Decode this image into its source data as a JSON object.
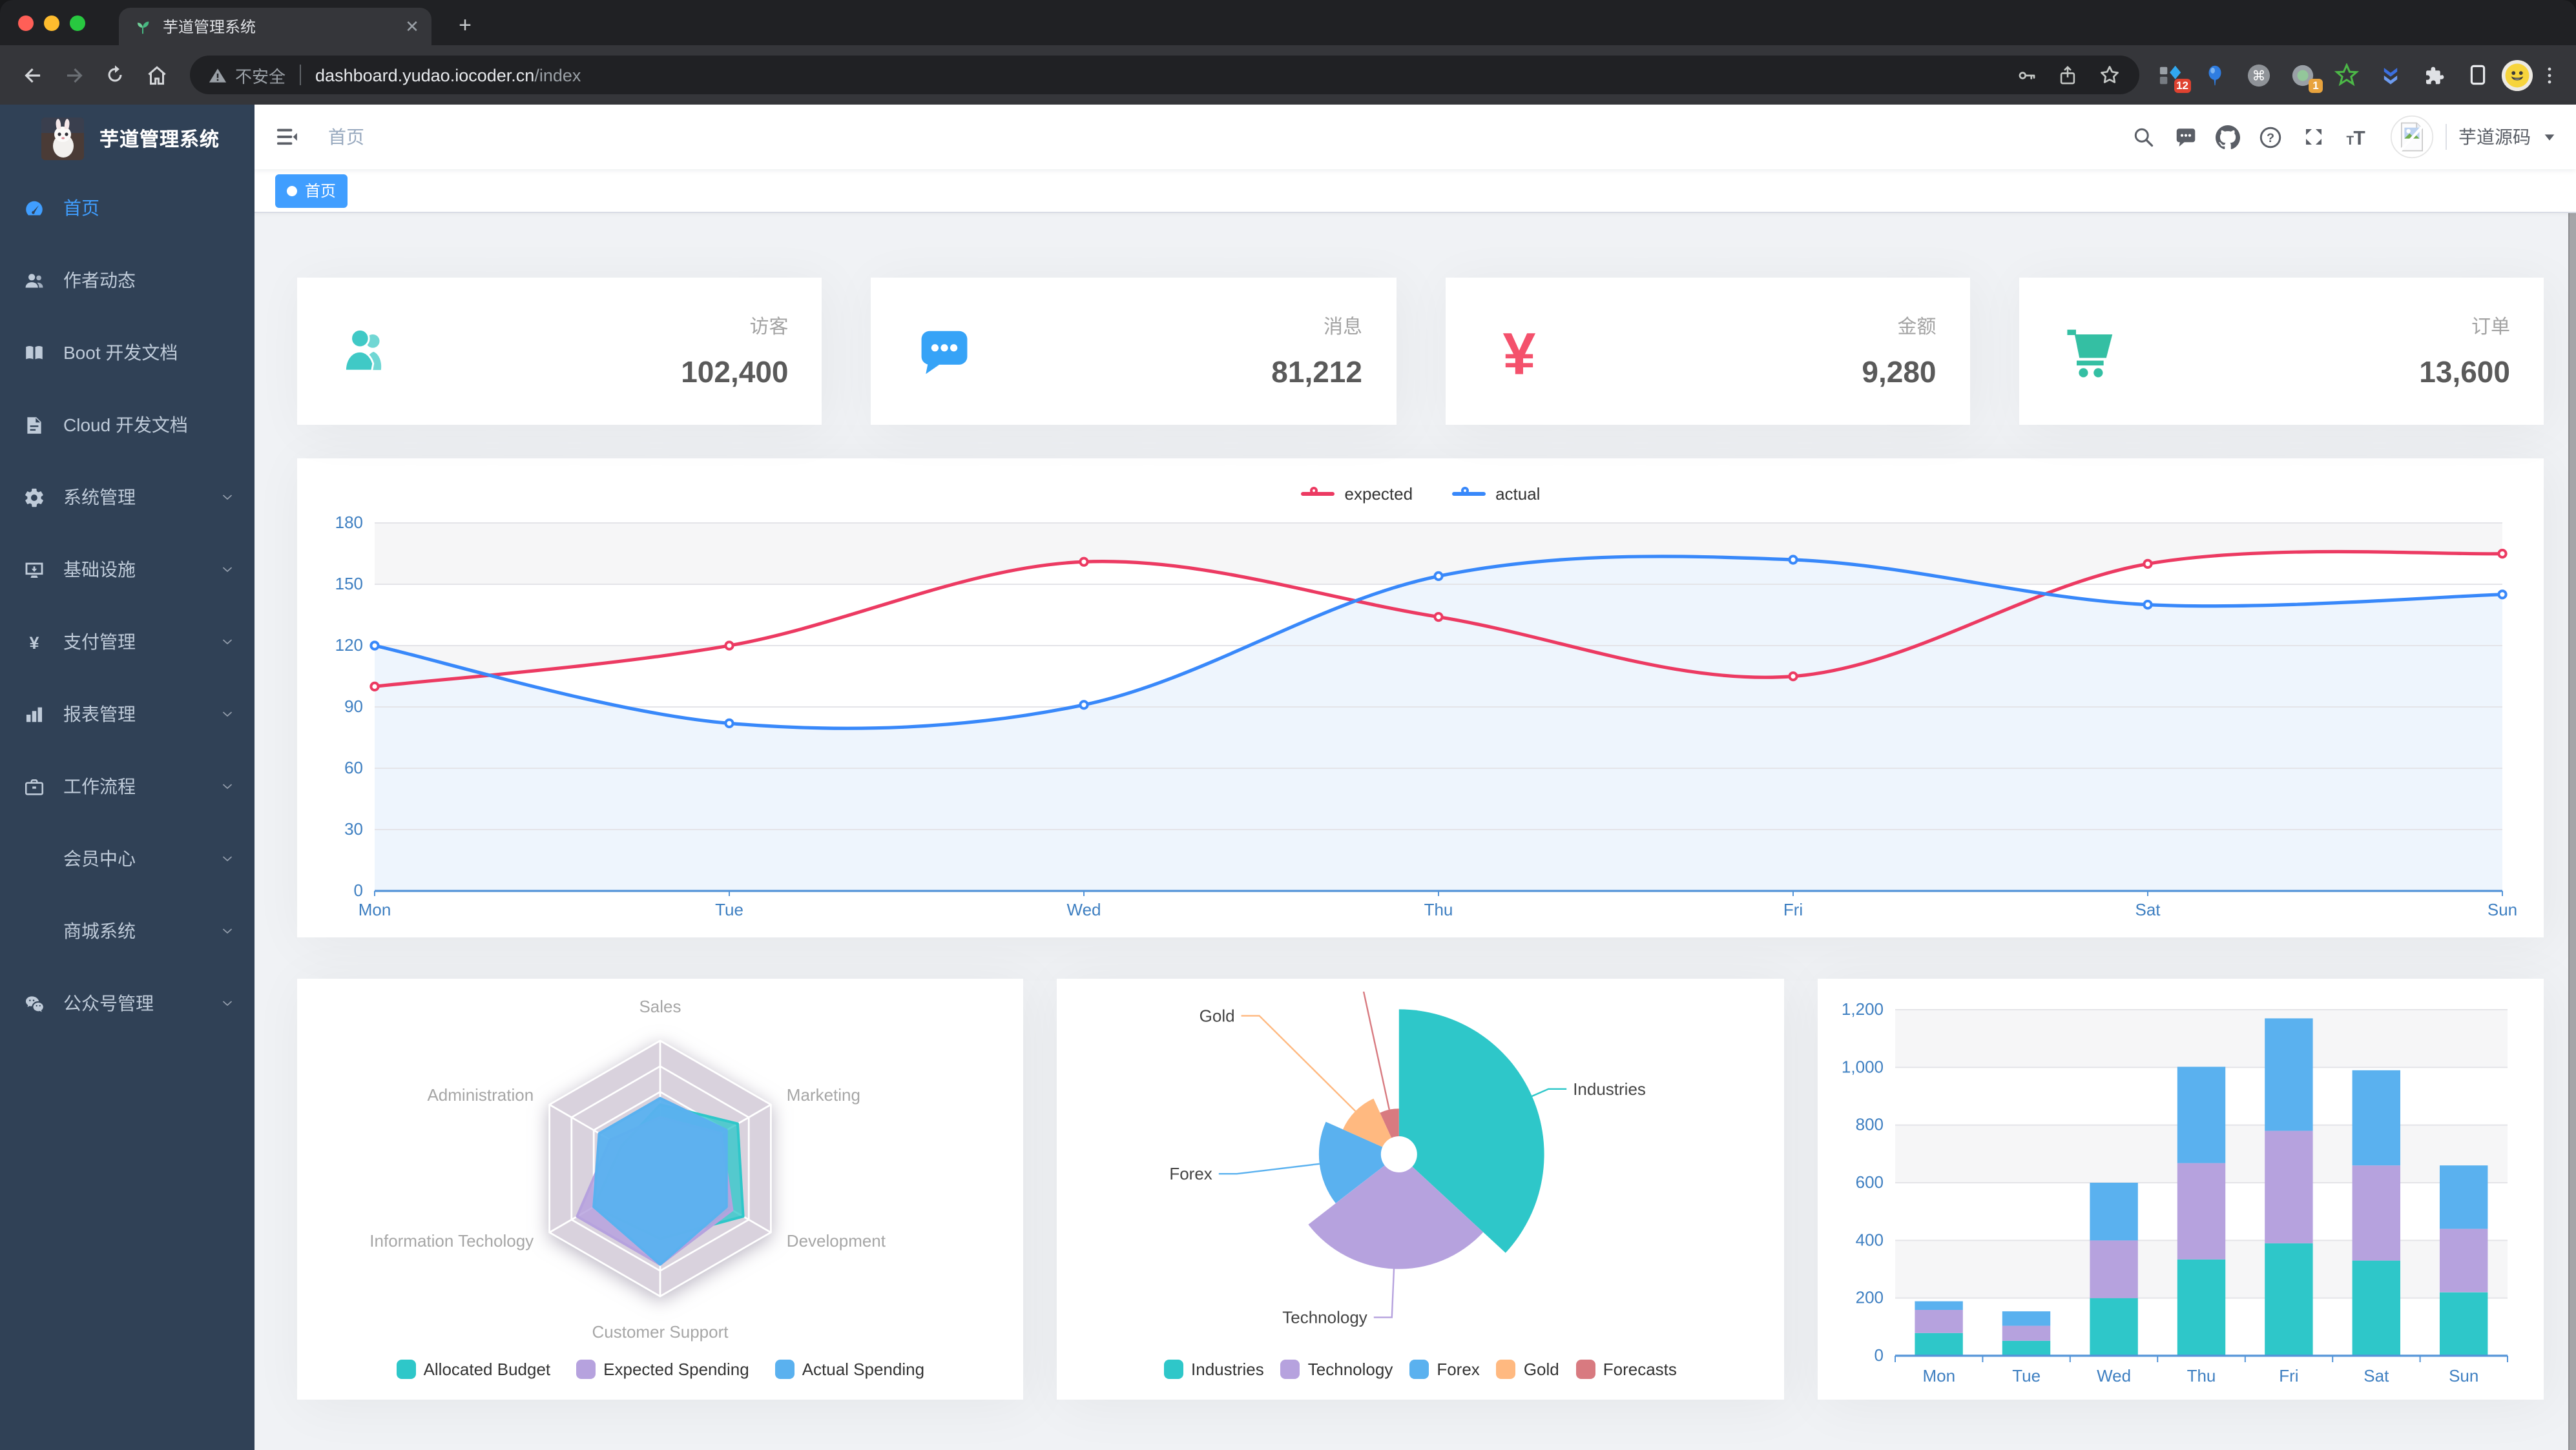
{
  "theme": {
    "accent": "#409eff",
    "sidebar_bg": "#304156",
    "content_bg": "#f0f2f5",
    "panel_bg": "#ffffff"
  },
  "browser": {
    "tab_title": "芋道管理系统",
    "traffic_lights": [
      "#ff5f57",
      "#febc2e",
      "#28c840"
    ],
    "url": {
      "security_label": "不安全",
      "host": "dashboard.yudao.iocoder.cn",
      "path": "/index"
    },
    "extension_badges": {
      "red": "12",
      "orange": "1"
    }
  },
  "sidebar": {
    "logo_title": "芋道管理系统",
    "items": [
      {
        "label": "首页",
        "icon": "dashboard-icon",
        "active": true,
        "expandable": false
      },
      {
        "label": "作者动态",
        "icon": "people-icon",
        "active": false,
        "expandable": false
      },
      {
        "label": "Boot 开发文档",
        "icon": "book-icon",
        "active": false,
        "expandable": false
      },
      {
        "label": "Cloud 开发文档",
        "icon": "document-icon",
        "active": false,
        "expandable": false
      },
      {
        "label": "系统管理",
        "icon": "gear-icon",
        "active": false,
        "expandable": true
      },
      {
        "label": "基础设施",
        "icon": "monitor-icon",
        "active": false,
        "expandable": true
      },
      {
        "label": "支付管理",
        "icon": "yuan-icon",
        "active": false,
        "expandable": true
      },
      {
        "label": "报表管理",
        "icon": "bar-chart-icon",
        "active": false,
        "expandable": true
      },
      {
        "label": "工作流程",
        "icon": "briefcase-icon",
        "active": false,
        "expandable": true
      },
      {
        "label": "会员中心",
        "icon": null,
        "active": false,
        "expandable": true
      },
      {
        "label": "商城系统",
        "icon": null,
        "active": false,
        "expandable": true
      },
      {
        "label": "公众号管理",
        "icon": "wechat-icon",
        "active": false,
        "expandable": true
      }
    ]
  },
  "navbar": {
    "breadcrumb": "首页",
    "username": "芋道源码"
  },
  "tags": [
    {
      "label": "首页",
      "active": true
    }
  ],
  "stat_cards": [
    {
      "label": "访客",
      "value": "102,400",
      "icon": "people-group-icon",
      "icon_color": "#40c9c6"
    },
    {
      "label": "消息",
      "value": "81,212",
      "icon": "message-icon",
      "icon_color": "#36a3f7"
    },
    {
      "label": "金额",
      "value": "9,280",
      "icon": "money-icon",
      "icon_color": "#f4516c"
    },
    {
      "label": "订单",
      "value": "13,600",
      "icon": "cart-icon",
      "icon_color": "#34bfa3"
    }
  ],
  "chart_data": [
    {
      "id": "weekly-trend",
      "type": "line",
      "x": [
        "Mon",
        "Tue",
        "Wed",
        "Thu",
        "Fri",
        "Sat",
        "Sun"
      ],
      "yticks": [
        0,
        30,
        60,
        90,
        120,
        150,
        180
      ],
      "ytick_labels": [
        "0",
        "30",
        "60",
        "90",
        "120",
        "150",
        "180"
      ],
      "ylim": [
        0,
        180
      ],
      "legend": [
        "expected",
        "actual"
      ],
      "legend_position": "top-center",
      "grid": true,
      "axis_label_color": "#3e7fc1",
      "axis_line_color": "#5494d8",
      "band_color": "#f6f6f7",
      "gridline_color": "#e4e4e8",
      "series": [
        {
          "name": "expected",
          "color": "#ec3a62",
          "values": [
            100,
            120,
            161,
            134,
            105,
            160,
            165
          ],
          "area": "#ffffff"
        },
        {
          "name": "actual",
          "color": "#3888fa",
          "values": [
            120,
            82,
            91,
            154,
            162,
            140,
            145
          ],
          "area": "#eef5fd"
        }
      ]
    },
    {
      "id": "budget-radar",
      "type": "radar",
      "indicators": [
        {
          "name": "Sales",
          "max": 10000
        },
        {
          "name": "Marketing",
          "max": 20000
        },
        {
          "name": "Development",
          "max": 20000
        },
        {
          "name": "Customer Support",
          "max": 20000
        },
        {
          "name": "Information Techology",
          "max": 20000
        },
        {
          "name": "Administration",
          "max": 20000
        }
      ],
      "ring_color": "#d9d2dd",
      "label_color": "#a6a6a6",
      "legend_position": "bottom-center",
      "series": [
        {
          "name": "Allocated Budget",
          "color": "#2ec7c9",
          "values": [
            5000,
            14000,
            15000,
            11000,
            12000,
            7000
          ]
        },
        {
          "name": "Expected Spending",
          "color": "#b6a2de",
          "values": [
            4000,
            11000,
            13000,
            15000,
            15000,
            9000
          ]
        },
        {
          "name": "Actual Spending",
          "color": "#5ab1ef",
          "values": [
            5500,
            12000,
            12000,
            15000,
            12000,
            11000
          ]
        }
      ]
    },
    {
      "id": "category-pie",
      "type": "pie",
      "rose": true,
      "legend_position": "bottom-center",
      "label_color": "#444444",
      "items": [
        {
          "name": "Industries",
          "value": 320,
          "color": "#2ec7c9"
        },
        {
          "name": "Technology",
          "value": 240,
          "color": "#b6a2de"
        },
        {
          "name": "Forex",
          "value": 149,
          "color": "#5ab1ef"
        },
        {
          "name": "Gold",
          "value": 100,
          "color": "#ffb980"
        },
        {
          "name": "Forecasts",
          "value": 59,
          "color": "#d87a80"
        }
      ]
    },
    {
      "id": "weekly-stacked-bar",
      "type": "bar",
      "stacked": true,
      "categories": [
        "Mon",
        "Tue",
        "Wed",
        "Thu",
        "Fri",
        "Sat",
        "Sun"
      ],
      "yticks": [
        0,
        200,
        400,
        600,
        800,
        1000,
        1200
      ],
      "ytick_labels": [
        "0",
        "200",
        "400",
        "600",
        "800",
        "1,000",
        "1,200"
      ],
      "ylim": [
        0,
        1200
      ],
      "axis_label_color": "#3e7fc1",
      "axis_line_color": "#5494d8",
      "band_color": "#f6f6f7",
      "gridline_color": "#e4e4e8",
      "series": [
        {
          "color": "#2ec7c9",
          "values": [
            79,
            52,
            200,
            334,
            390,
            330,
            220
          ]
        },
        {
          "color": "#b6a2de",
          "values": [
            80,
            52,
            200,
            334,
            390,
            330,
            220
          ]
        },
        {
          "color": "#5ab1ef",
          "values": [
            30,
            50,
            200,
            334,
            390,
            330,
            220
          ]
        }
      ]
    }
  ]
}
